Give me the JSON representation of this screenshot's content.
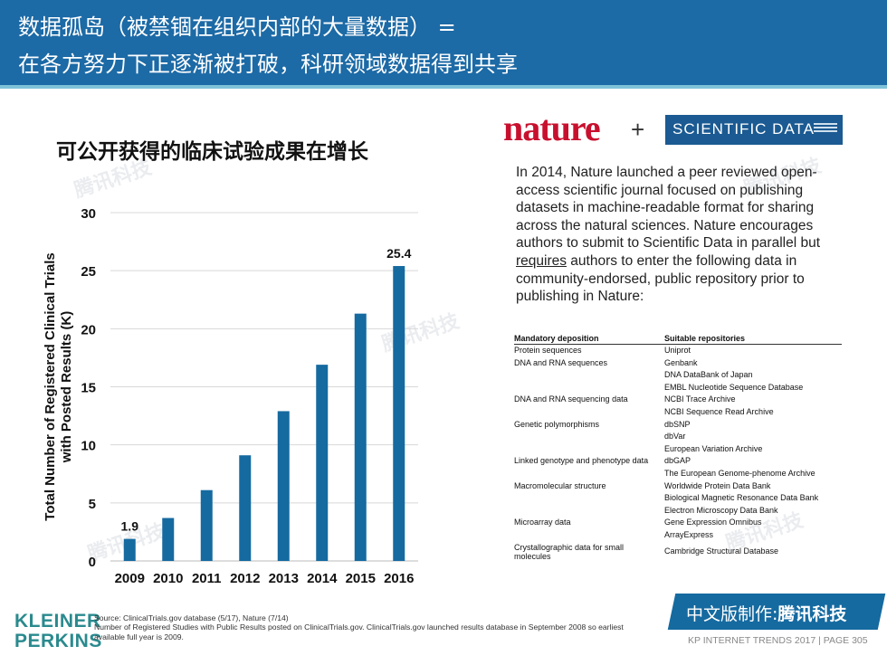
{
  "header": {
    "line1": "数据孤岛（被禁锢在组织内部的大量数据） =",
    "line2": "在各方努力下正逐渐被打破，科研领域数据得到共享"
  },
  "chart_data": {
    "type": "bar",
    "title": "可公开获得的临床试验成果在增长",
    "ylabel": "Total Number of Registered Clinical Trials with Posted Results (K)",
    "xlabel": "",
    "categories": [
      "2009",
      "2010",
      "2011",
      "2012",
      "2013",
      "2014",
      "2015",
      "2016"
    ],
    "values": [
      1.9,
      3.7,
      6.1,
      9.1,
      12.9,
      16.9,
      21.3,
      25.4
    ],
    "data_labels": {
      "0": "1.9",
      "7": "25.4"
    },
    "ylim": [
      0,
      30
    ],
    "yticks": [
      0,
      5,
      10,
      15,
      20,
      25,
      30
    ],
    "grid": true,
    "bar_color": "#156aa0"
  },
  "logos": {
    "nature": "nature",
    "plus": "+",
    "scientific_data": "SCIENTIFIC DATA"
  },
  "description": {
    "part1": "In 2014, Nature launched a peer reviewed open-access scientific journal focused on publishing datasets in machine-readable format for sharing across the natural sciences. Nature encourages authors to submit to Scientific Data in parallel but ",
    "underlined": "requires",
    "part2": " authors to enter the following data in community-endorsed, public repository prior to publishing in Nature:"
  },
  "repository_table": {
    "headers": [
      "Mandatory deposition",
      "Suitable repositories"
    ],
    "rows": [
      [
        "Protein sequences",
        "Uniprot"
      ],
      [
        "DNA and RNA sequences",
        "Genbank"
      ],
      [
        "",
        "DNA DataBank of Japan"
      ],
      [
        "",
        "EMBL Nucleotide Sequence Database"
      ],
      [
        "DNA and RNA sequencing data",
        "NCBI Trace Archive"
      ],
      [
        "",
        "NCBI Sequence Read Archive"
      ],
      [
        "Genetic polymorphisms",
        "dbSNP"
      ],
      [
        "",
        "dbVar"
      ],
      [
        "",
        "European Variation Archive"
      ],
      [
        "Linked genotype and phenotype data",
        "dbGAP"
      ],
      [
        "",
        "The European Genome-phenome Archive"
      ],
      [
        "Macromolecular structure",
        "Worldwide Protein Data Bank"
      ],
      [
        "",
        "Biological Magnetic Resonance Data Bank"
      ],
      [
        "",
        "Electron Microscopy Data Bank"
      ],
      [
        "Microarray data",
        "Gene Expression Omnibus"
      ],
      [
        "",
        "ArrayExpress"
      ],
      [
        "Crystallographic data for small molecules",
        "Cambridge Structural Database"
      ]
    ]
  },
  "watermark": "腾讯科技",
  "footer": {
    "logo_line1": "KLEINER",
    "logo_line2": "PERKINS",
    "source_line1": "Source: ClinicalTrials.gov database (5/17), Nature (7/14)",
    "source_line2": "Number of Registered Studies with Public Results posted on ClinicalTrials.gov. ClinicalTrials.gov launched results database in September 2008 so earliest available full year is 2009.",
    "badge_prefix": "中文版制作:",
    "badge_brand": "腾讯科技",
    "page_info": "KP INTERNET TRENDS 2017  |  PAGE 305"
  }
}
